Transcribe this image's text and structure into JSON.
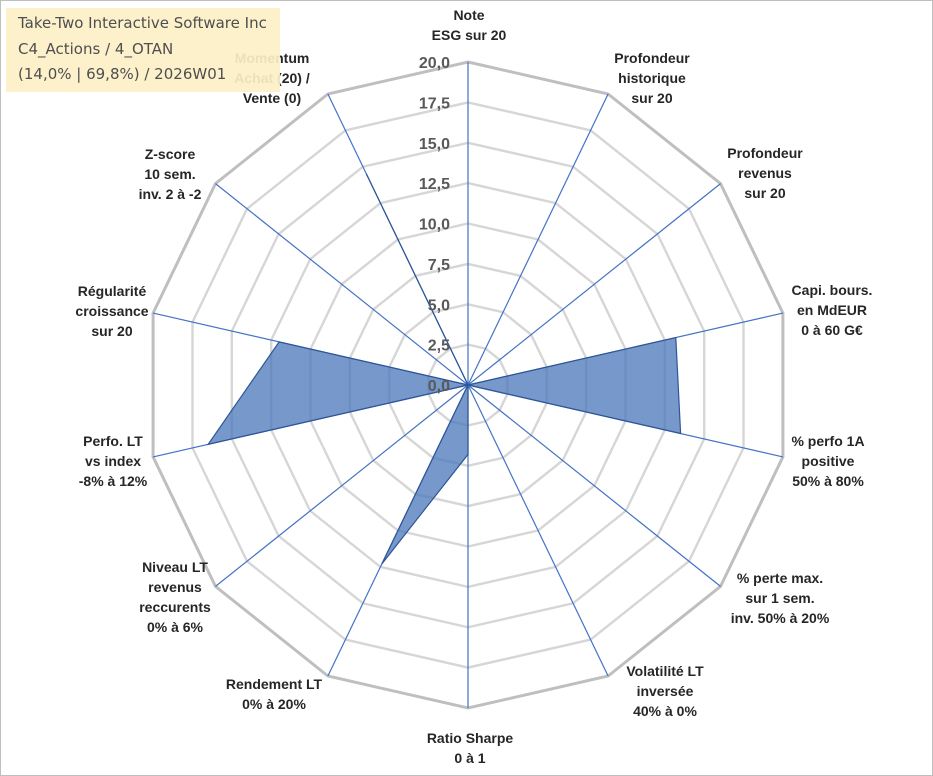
{
  "title": {
    "line1": "Take-Two Interactive Software Inc",
    "line2": "C4_Actions / 4_OTAN",
    "line3": "(14,0% | 69,8%) / 2026W01"
  },
  "colors": {
    "fill": "#4a76b8",
    "fill_opacity": 0.75,
    "series_line": "#2e5597",
    "spoke": "#4472c4",
    "ring": "#bfbfbf",
    "ring_inner": "#d6d6d6",
    "title_bg": "#fdf0c8"
  },
  "chart_data": {
    "type": "radar",
    "rmin": 0,
    "rmax": 20,
    "ticks": [
      "0,0",
      "2,5",
      "5,0",
      "7,5",
      "10,0",
      "12,5",
      "15,0",
      "17,5",
      "20,0"
    ],
    "tick_values": [
      0,
      2.5,
      5,
      7.5,
      10,
      12.5,
      15,
      17.5,
      20
    ],
    "axes": [
      {
        "lines": [
          "Note",
          "ESG sur 20"
        ],
        "value": 0
      },
      {
        "lines": [
          "Profondeur",
          "historique",
          "sur 20"
        ],
        "value": 0
      },
      {
        "lines": [
          "Profondeur",
          "revenus",
          "sur 20"
        ],
        "value": 0
      },
      {
        "lines": [
          "Capi. bours.",
          "en MdEUR",
          "0 à 60 G€"
        ],
        "value": 13.2
      },
      {
        "lines": [
          "% perfo 1A",
          "positive",
          "50% à 80%"
        ],
        "value": 13.5
      },
      {
        "lines": [
          "% perte max.",
          "sur 1 sem.",
          "inv. 50% à 20%"
        ],
        "value": 0
      },
      {
        "lines": [
          "Volatilité LT",
          "inversée",
          "40% à 0%"
        ],
        "value": 0
      },
      {
        "lines": [
          "Ratio Sharpe",
          "0 à 1"
        ],
        "value": 4.3
      },
      {
        "lines": [
          "Rendement LT",
          "0% à 20%"
        ],
        "value": 12.3
      },
      {
        "lines": [
          "Niveau LT",
          "revenus",
          "reccurents",
          "0% à 6%"
        ],
        "value": 0
      },
      {
        "lines": [
          "Perfo. LT",
          "vs index",
          "-8% à 12%"
        ],
        "value": 16.5
      },
      {
        "lines": [
          "Régularité",
          "croissance",
          "sur 20"
        ],
        "value": 12.0
      },
      {
        "lines": [
          "Z-score",
          "10 sem.",
          "inv. 2 à -2"
        ],
        "value": 0
      },
      {
        "lines": [
          "Momentum",
          "Achat (20) /",
          "Vente (0)"
        ],
        "value": 14.5
      }
    ]
  }
}
